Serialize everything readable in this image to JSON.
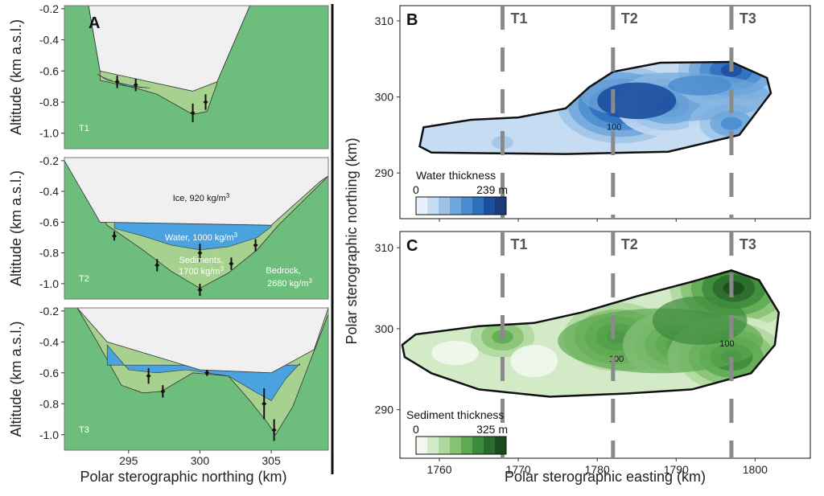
{
  "chart_data": [
    {
      "panel": "A",
      "type": "area",
      "subpanels": [
        "T1",
        "T2",
        "T3"
      ],
      "xlabel": "Polar sterographic northing (km)",
      "ylabel": "Altitude (km a.s.l.)",
      "xticks": [
        295,
        300,
        305
      ],
      "yticks": [
        -0.2,
        -0.4,
        -0.6,
        -0.8,
        -1.0
      ],
      "ytick_labels": [
        "-0.2",
        "-0.4",
        "-0.6",
        "-0.8",
        "-1.0"
      ],
      "ylim": [
        -1.1,
        -0.18
      ],
      "xlim": [
        290.5,
        309
      ],
      "layers": [
        {
          "name": "Ice",
          "density": "920 kg/m³",
          "label": "Ice, 920 kg/m",
          "sup": "3",
          "color": "#f0f0f0"
        },
        {
          "name": "Water",
          "density": "1000 kg/m³",
          "label": "Water, 1000 kg/m",
          "sup": "3",
          "color": "#4aa3df"
        },
        {
          "name": "Sediments",
          "density": "1700 kg/m³",
          "label_line1": "Sediments,",
          "label_line2": "1700 kg/m",
          "sup": "3",
          "color": "#a6d18e"
        },
        {
          "name": "Bedrock",
          "density": "2680 kg/m³",
          "label_line1": "Bedrock,",
          "label_line2": "2680 kg/m",
          "sup": "3",
          "color": "#6dbd7c"
        }
      ],
      "profiles": {
        "T1": {
          "surface": [
            [
              292.2,
              -0.18
            ],
            [
              293,
              -0.6
            ],
            [
              299.5,
              -0.73
            ],
            [
              301.2,
              -0.67
            ],
            [
              303.5,
              -0.18
            ]
          ],
          "water": [
            [
              292.8,
              -0.62
            ],
            [
              293.5,
              -0.66
            ],
            [
              294.5,
              -0.68
            ],
            [
              295.5,
              -0.7
            ],
            [
              296.5,
              -0.71
            ],
            [
              295,
              -0.7
            ],
            [
              294,
              -0.67
            ],
            [
              293.2,
              -0.64
            ]
          ],
          "bedrock": [
            [
              292.2,
              -0.18
            ],
            [
              293,
              -0.64
            ],
            [
              295.5,
              -0.72
            ],
            [
              297,
              -0.74
            ],
            [
              299.5,
              -0.87
            ],
            [
              300.5,
              -0.85
            ],
            [
              301.2,
              -0.67
            ],
            [
              303.5,
              -0.18
            ]
          ],
          "sed_bottom": [
            [
              293,
              -0.66
            ],
            [
              295.5,
              -0.71
            ],
            [
              297,
              -0.75
            ],
            [
              299.5,
              -0.88
            ],
            [
              300.5,
              -0.86
            ],
            [
              301.2,
              -0.68
            ]
          ],
          "error_bars": [
            [
              294.2,
              -0.67,
              0.04
            ],
            [
              295.5,
              -0.69,
              0.04
            ],
            [
              299.5,
              -0.87,
              0.06
            ],
            [
              300.4,
              -0.8,
              0.05
            ]
          ]
        },
        "T2": {
          "surface": [
            [
              290.5,
              -0.2
            ],
            [
              293,
              -0.6
            ],
            [
              305,
              -0.62
            ],
            [
              308.5,
              -0.33
            ],
            [
              309,
              -0.3
            ]
          ],
          "water_bottom": [
            [
              294,
              -0.64
            ],
            [
              296,
              -0.69
            ],
            [
              298,
              -0.75
            ],
            [
              300,
              -0.78
            ],
            [
              302,
              -0.76
            ],
            [
              304,
              -0.7
            ],
            [
              305,
              -0.63
            ]
          ],
          "sed_bottom": [
            [
              293.5,
              -0.62
            ],
            [
              296,
              -0.78
            ],
            [
              298,
              -0.92
            ],
            [
              300,
              -1.03
            ],
            [
              302,
              -0.93
            ],
            [
              304,
              -0.78
            ],
            [
              305.5,
              -0.62
            ]
          ],
          "error_bars": [
            [
              294,
              -0.69,
              0.03
            ],
            [
              297,
              -0.88,
              0.04
            ],
            [
              300,
              -0.8,
              0.06
            ],
            [
              300,
              -1.04,
              0.04
            ],
            [
              302.2,
              -0.87,
              0.04
            ],
            [
              303.9,
              -0.75,
              0.04
            ]
          ]
        },
        "T3": {
          "surface": [
            [
              291.4,
              -0.18
            ],
            [
              293.5,
              -0.4
            ],
            [
              300,
              -0.58
            ],
            [
              305,
              -0.6
            ],
            [
              308,
              -0.45
            ],
            [
              309,
              -0.18
            ]
          ],
          "water_bottom": [
            [
              293.5,
              -0.42
            ],
            [
              295,
              -0.58
            ],
            [
              297,
              -0.6
            ],
            [
              299,
              -0.58
            ],
            [
              300.5,
              -0.6
            ],
            [
              302,
              -0.62
            ],
            [
              304,
              -0.73
            ],
            [
              305,
              -0.78
            ],
            [
              306,
              -0.64
            ],
            [
              307,
              -0.54
            ]
          ],
          "sed_bottom": [
            [
              292.8,
              -0.4
            ],
            [
              294.5,
              -0.68
            ],
            [
              296,
              -0.73
            ],
            [
              297.3,
              -0.72
            ],
            [
              299.5,
              -0.6
            ],
            [
              302,
              -0.62
            ],
            [
              303.5,
              -0.78
            ],
            [
              304.8,
              -0.93
            ],
            [
              305.3,
              -1.0
            ],
            [
              306.5,
              -0.82
            ],
            [
              309,
              -0.22
            ]
          ],
          "error_bars": [
            [
              296.4,
              -0.62,
              0.05
            ],
            [
              297.4,
              -0.72,
              0.04
            ],
            [
              300.5,
              -0.6,
              0.02
            ],
            [
              304.5,
              -0.8,
              0.1
            ],
            [
              305.2,
              -0.97,
              0.07
            ]
          ]
        }
      }
    },
    {
      "panel": "B",
      "type": "heatmap",
      "title": "Water thickness",
      "colorbar_min": "0",
      "colorbar_max": "239 m",
      "colorbar_range": [
        0,
        239
      ],
      "colorbar_colors": [
        "#e8f1fb",
        "#c6dcf2",
        "#9dc4e8",
        "#6fa6db",
        "#4a8ccf",
        "#2d6fbf",
        "#1c4f9e",
        "#1b3c7a"
      ],
      "contour_label": "100",
      "yticks": [
        290,
        300,
        310
      ],
      "ylim": [
        284,
        312
      ],
      "xlim": [
        1755,
        1807
      ],
      "outline": [
        [
          1757.5,
          293.5
        ],
        [
          1758,
          296
        ],
        [
          1764,
          297
        ],
        [
          1770,
          297.3
        ],
        [
          1776,
          298.5
        ],
        [
          1779,
          301.3
        ],
        [
          1782,
          303.3
        ],
        [
          1788,
          304.5
        ],
        [
          1797,
          304.6
        ],
        [
          1801.5,
          302.5
        ],
        [
          1802,
          300.5
        ],
        [
          1798,
          295
        ],
        [
          1789,
          292.8
        ],
        [
          1776,
          292.5
        ],
        [
          1766,
          292.6
        ],
        [
          1759,
          292.7
        ]
      ],
      "blobs": [
        {
          "center": [
            1768,
            294
          ],
          "level": 2
        },
        {
          "center": [
            1783,
            299
          ],
          "level": 7
        },
        {
          "center": [
            1789,
            299
          ],
          "level": 5
        },
        {
          "center": [
            1797,
            303.5
          ],
          "level": 6
        },
        {
          "center": [
            1797,
            296.5
          ],
          "level": 4
        }
      ]
    },
    {
      "panel": "C",
      "type": "heatmap",
      "title": "Sediment thickness",
      "colorbar_min": "0",
      "colorbar_max": "325 m",
      "colorbar_range": [
        0,
        325
      ],
      "colorbar_colors": [
        "#f2f8ef",
        "#d2eac6",
        "#afd89c",
        "#87c272",
        "#5ea952",
        "#3c8a3c",
        "#2a6a2c",
        "#1b4a1f"
      ],
      "contour_labels": [
        "100",
        "100"
      ],
      "xlabel": "Polar sterographic easting (km)",
      "ylabel": "Polar sterographic northing (km)",
      "xticks": [
        1760,
        1770,
        1780,
        1790,
        1800
      ],
      "yticks": [
        290,
        300,
        310
      ],
      "ylim": [
        284,
        312
      ],
      "xlim": [
        1755,
        1807
      ],
      "outline": [
        [
          1755.3,
          298
        ],
        [
          1757,
          299.3
        ],
        [
          1765,
          300.3
        ],
        [
          1772,
          300.7
        ],
        [
          1778,
          302
        ],
        [
          1785,
          304
        ],
        [
          1792,
          305.8
        ],
        [
          1797,
          307.2
        ],
        [
          1800.5,
          306
        ],
        [
          1803,
          302
        ],
        [
          1802.5,
          298
        ],
        [
          1799.5,
          294.5
        ],
        [
          1792,
          292.5
        ],
        [
          1784,
          292
        ],
        [
          1774,
          291.6
        ],
        [
          1765,
          292.5
        ],
        [
          1759,
          294.5
        ],
        [
          1755.6,
          296.5
        ]
      ],
      "blobs": [
        {
          "center": [
            1768,
            299
          ],
          "level": 4
        },
        {
          "center": [
            1782.5,
            299
          ],
          "level": 6
        },
        {
          "center": [
            1790,
            298
          ],
          "level": 5
        },
        {
          "center": [
            1797.3,
            305
          ],
          "level": 7
        },
        {
          "center": [
            1797,
            296.5
          ],
          "level": 6
        }
      ]
    }
  ],
  "transect_labels": [
    "T1",
    "T2",
    "T3"
  ],
  "transect_eastings": [
    1768,
    1782,
    1797
  ],
  "panel_labels": [
    "A",
    "B",
    "C"
  ]
}
